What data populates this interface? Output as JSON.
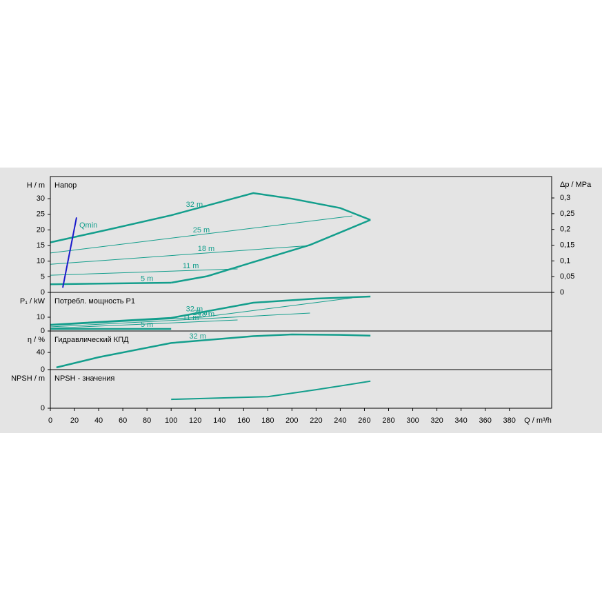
{
  "chart_data": [
    {
      "type": "line",
      "title": "Напор",
      "ylabel": "H / m",
      "y2label": "Δp / MPa",
      "ylim": [
        0,
        37.1
      ],
      "yticks": [
        0,
        5,
        10,
        15,
        20,
        25,
        30
      ],
      "y2lim": [
        0,
        0.368
      ],
      "y2ticks": [
        0,
        {
          "value": 0.05,
          "label": "0,05"
        },
        {
          "value": 0.1,
          "label": "0,1"
        },
        {
          "value": 0.15,
          "label": "0,15"
        },
        {
          "value": 0.2,
          "label": "0,2"
        },
        {
          "value": 0.25,
          "label": "0,25"
        },
        {
          "value": 0.3,
          "label": "0,3"
        }
      ],
      "series": [
        {
          "name": "32 m",
          "color": "#139e8c",
          "line_width": 2.5,
          "x": [
            0,
            50,
            100,
            168,
            200,
            240,
            265
          ],
          "values": [
            16,
            20.3,
            24.7,
            31.8,
            30,
            27,
            23.2
          ]
        },
        {
          "name": "25 m",
          "color": "#139e8c",
          "line_width": 1,
          "x": [
            0,
            250
          ],
          "values": [
            12.6,
            24.5
          ]
        },
        {
          "name": "18 m",
          "color": "#139e8c",
          "line_width": 1,
          "x": [
            0,
            215
          ],
          "values": [
            9,
            15
          ]
        },
        {
          "name": "11 m",
          "color": "#139e8c",
          "line_width": 1,
          "x": [
            0,
            155
          ],
          "values": [
            5.5,
            7.5
          ]
        },
        {
          "name": "5 m",
          "color": "#139e8c",
          "line_width": 2.5,
          "x": [
            0,
            100
          ],
          "values": [
            2.6,
            3.1
          ]
        },
        {
          "color": "#139e8c",
          "line_width": 2.5,
          "x": [
            100,
            130,
            168,
            215,
            265
          ],
          "values": [
            3.1,
            5.2,
            9.7,
            15.2,
            23.2
          ]
        },
        {
          "name": "Qmin",
          "color": "#1a1acc",
          "line_width": 2,
          "x": [
            10.3,
            21.7
          ],
          "values": [
            1.5,
            24
          ]
        }
      ]
    },
    {
      "type": "line",
      "title": "Потребл. мощность P1",
      "ylabel": "P₁ / kW",
      "ylim": [
        0,
        28
      ],
      "yticks": [
        0,
        10
      ],
      "series": [
        {
          "name": "32 m",
          "color": "#139e8c",
          "line_width": 2.5,
          "x": [
            0,
            100,
            168,
            220,
            265
          ],
          "values": [
            4.5,
            9.5,
            20.5,
            23.5,
            25
          ]
        },
        {
          "name": "25 m",
          "color": "#139e8c",
          "line_width": 1,
          "x": [
            0,
            125,
            250
          ],
          "values": [
            4,
            10,
            24
          ]
        },
        {
          "name": "18 m",
          "color": "#139e8c",
          "line_width": 1,
          "x": [
            0,
            215
          ],
          "values": [
            3,
            13
          ]
        },
        {
          "name": "11 m",
          "color": "#139e8c",
          "line_width": 1,
          "x": [
            0,
            155
          ],
          "values": [
            2,
            8
          ]
        },
        {
          "name": "5 m",
          "color": "#139e8c",
          "line_width": 2.5,
          "x": [
            0,
            100
          ],
          "values": [
            1.5,
            1.5
          ]
        }
      ]
    },
    {
      "type": "line",
      "title": "Гидравлический КПД",
      "ylabel": "η / %",
      "ylim": [
        0,
        90
      ],
      "yticks": [
        0,
        40
      ],
      "series": [
        {
          "name": "32 m",
          "color": "#139e8c",
          "line_width": 2.5,
          "x": [
            5,
            40,
            100,
            168,
            200,
            240,
            265
          ],
          "values": [
            5,
            29,
            62,
            78,
            82,
            81,
            79
          ]
        }
      ]
    },
    {
      "type": "line",
      "title": "NPSH - значения",
      "ylabel": "NPSH / m",
      "ylim": [
        0,
        10
      ],
      "yticks": [
        0
      ],
      "xlim": [
        0,
        415
      ],
      "xticks": [
        0,
        20,
        40,
        60,
        80,
        100,
        120,
        140,
        160,
        180,
        200,
        220,
        240,
        260,
        280,
        300,
        320,
        340,
        360,
        380
      ],
      "xlabel": "Q / m³/h",
      "series": [
        {
          "color": "#139e8c",
          "line_width": 2,
          "x": [
            100,
            180,
            220,
            265
          ],
          "values": [
            2.3,
            3,
            4.8,
            7
          ]
        }
      ]
    }
  ]
}
